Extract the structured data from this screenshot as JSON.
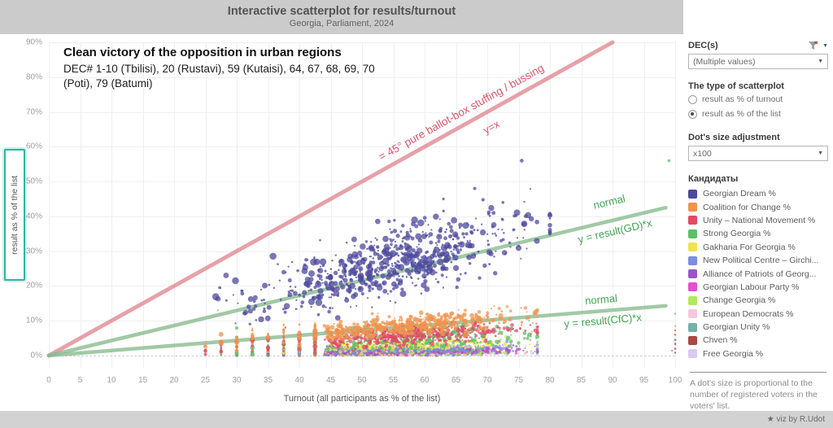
{
  "header": {
    "title": "Interactive scatterplot for results/turnout",
    "subtitle": "Georgia, Parliament, 2024"
  },
  "footer": {
    "credit": "★ viz by R.Udot"
  },
  "panel": {
    "dec_filter": {
      "label": "DEC(s)",
      "value": "(Multiple values)"
    },
    "scatterplot_type": {
      "label": "The type of scatterplot",
      "options": [
        {
          "label": "result as % of turnout",
          "selected": false
        },
        {
          "label": "result as % of the list",
          "selected": true
        }
      ]
    },
    "dot_size": {
      "label": "Dot's size adjustment",
      "value": "x100"
    },
    "legend_title": "Кандидаты",
    "note": "A dot's size is proportional to the number of registered voters in the voters' list."
  },
  "chart_data": {
    "type": "scatter",
    "title": "Interactive scatterplot for results/turnout",
    "xlabel": "Turnout (all participants as % of the list)",
    "ylabel": "result as % of the list",
    "xlim": [
      0,
      100
    ],
    "xtick_step": 5,
    "ylim": [
      0,
      90
    ],
    "ytick_step": 10,
    "ytick_suffix": "%",
    "grid": true,
    "legend_position": "right",
    "point_seed": 11,
    "annotation": {
      "title": "Clean victory of the opposition in urban regions",
      "body": "DEC# 1-10 (Tbilisi), 20 (Rustavi), 59 (Kutaisi), 64, 67, 68, 69, 70 (Poti), 79 (Batumi)"
    },
    "reference_lines": [
      {
        "name": "diagonal-45",
        "from": [
          0,
          0
        ],
        "to": [
          90,
          90
        ],
        "color": "#e08a92",
        "width": 5,
        "label_top": "= 45° pure ballot-box stuffing / bussing",
        "label_bottom": "y=x",
        "label_color": "#d5576b"
      },
      {
        "name": "gd-normal",
        "from": [
          0,
          0
        ],
        "to": [
          98.5,
          42.5
        ],
        "color": "#8abc90",
        "width": 4.5,
        "label_top": "normal",
        "label_bottom": "y = result(GD)*x",
        "label_color": "#41a352"
      },
      {
        "name": "cfc-normal",
        "from": [
          0,
          0
        ],
        "to": [
          98.5,
          14.3
        ],
        "color": "#8abc90",
        "width": 4.5,
        "label_top": "normal",
        "label_bottom": "y = result(CfC)*x",
        "label_color": "#41a352"
      }
    ],
    "series": [
      {
        "name": "Georgian Dream %",
        "color": "#4e4a9c",
        "cluster": {
          "n": 720,
          "x_mean": 56,
          "x_sd": 9.5,
          "x_clip": [
            26,
            80
          ],
          "slope": 0.48,
          "y_noise": 4.8,
          "y_clip": [
            5,
            52
          ],
          "r": [
            1.1,
            4.3
          ],
          "snap": false,
          "left_frac": 0.05
        },
        "outliers": [
          [
            75.5,
            56,
            2.3
          ],
          [
            68,
            48,
            2
          ],
          [
            72.5,
            44,
            1.8
          ],
          [
            63,
            45,
            1.6
          ]
        ]
      },
      {
        "name": "Coalition for Change %",
        "color": "#f0944d",
        "cluster": {
          "n": 640,
          "x_mean": 57,
          "x_sd": 9,
          "x_clip": [
            26,
            78
          ],
          "slope": 0.15,
          "y_noise": 1.4,
          "y_clip": [
            0.8,
            16
          ],
          "r": [
            1,
            3.3
          ],
          "snap": true,
          "left_frac": 0.08
        },
        "outliers": [
          [
            100,
            6,
            1.4
          ],
          [
            100,
            8.5,
            1.2
          ],
          [
            27,
            13,
            1.2
          ]
        ]
      },
      {
        "name": "Unity – National Movement %",
        "color": "#e04a66",
        "cluster": {
          "n": 600,
          "x_mean": 56,
          "x_sd": 9,
          "x_clip": [
            26,
            78
          ],
          "slope": 0.1,
          "y_noise": 1.4,
          "y_clip": [
            0.4,
            14
          ],
          "r": [
            1,
            3
          ],
          "snap": true,
          "left_frac": 0.08
        },
        "outliers": [
          [
            100,
            3.5,
            1.2
          ]
        ]
      },
      {
        "name": "Strong Georgia %",
        "color": "#5fbe68",
        "cluster": {
          "n": 440,
          "x_mean": 60,
          "x_sd": 9,
          "x_clip": [
            26,
            78
          ],
          "slope": 0.08,
          "y_noise": 2.0,
          "y_clip": [
            0.3,
            16
          ],
          "r": [
            1,
            3
          ],
          "snap": true,
          "left_frac": 0.07
        },
        "outliers": [
          [
            99,
            56,
            1.8
          ],
          [
            100,
            12,
            1.2
          ]
        ]
      },
      {
        "name": "Gakharia For Georgia %",
        "color": "#efe354",
        "cluster": {
          "n": 480,
          "x_mean": 56,
          "x_sd": 9,
          "x_clip": [
            26,
            78
          ],
          "slope": 0.05,
          "y_noise": 0.9,
          "y_clip": [
            0.2,
            8
          ],
          "r": [
            0.9,
            2.6
          ],
          "snap": true,
          "left_frac": 0.08
        },
        "outliers": []
      },
      {
        "name": "New Political Centre – Girchi...",
        "color": "#7a8de0",
        "cluster": {
          "n": 450,
          "x_mean": 56,
          "x_sd": 9,
          "x_clip": [
            26,
            78
          ],
          "slope": 0.032,
          "y_noise": 0.6,
          "y_clip": [
            0.15,
            5
          ],
          "r": [
            0.9,
            2.4
          ],
          "snap": true,
          "left_frac": 0.08
        },
        "outliers": []
      },
      {
        "name": "Alliance of Patriots of Georg...",
        "color": "#9c55c8",
        "cluster": {
          "n": 420,
          "x_mean": 56,
          "x_sd": 9,
          "x_clip": [
            26,
            78
          ],
          "slope": 0.024,
          "y_noise": 0.5,
          "y_clip": [
            0.1,
            4
          ],
          "r": [
            0.9,
            2.4
          ],
          "snap": true,
          "left_frac": 0.08
        },
        "outliers": []
      },
      {
        "name": "Georgian Labour Party %",
        "color": "#e44ed2",
        "cluster": {
          "n": 420,
          "x_mean": 56,
          "x_sd": 9,
          "x_clip": [
            26,
            78
          ],
          "slope": 0.02,
          "y_noise": 0.45,
          "y_clip": [
            0.1,
            3.5
          ],
          "r": [
            0.9,
            2.4
          ],
          "snap": true,
          "left_frac": 0.08
        },
        "outliers": []
      },
      {
        "name": "Change Georgia %",
        "color": "#b2e85e",
        "cluster": {
          "n": 260,
          "x_mean": 56,
          "x_sd": 9,
          "x_clip": [
            26,
            78
          ],
          "slope": 0.012,
          "y_noise": 0.35,
          "y_clip": [
            0.08,
            2.5
          ],
          "r": [
            0.9,
            2.2
          ],
          "snap": true,
          "left_frac": 0.07
        },
        "outliers": []
      },
      {
        "name": "European Democrats %",
        "color": "#f6c7db",
        "cluster": {
          "n": 220,
          "x_mean": 56,
          "x_sd": 9,
          "x_clip": [
            26,
            78
          ],
          "slope": 0.009,
          "y_noise": 0.3,
          "y_clip": [
            0.05,
            2
          ],
          "r": [
            0.9,
            2.2
          ],
          "snap": true,
          "left_frac": 0.06
        },
        "outliers": []
      },
      {
        "name": "Georgian Unity %",
        "color": "#72b2aa",
        "cluster": {
          "n": 220,
          "x_mean": 56,
          "x_sd": 9,
          "x_clip": [
            26,
            78
          ],
          "slope": 0.009,
          "y_noise": 0.3,
          "y_clip": [
            0.05,
            2
          ],
          "r": [
            0.9,
            2.2
          ],
          "snap": true,
          "left_frac": 0.06
        },
        "outliers": []
      },
      {
        "name": "Chven %",
        "color": "#a84a45",
        "cluster": {
          "n": 180,
          "x_mean": 56,
          "x_sd": 9,
          "x_clip": [
            26,
            78
          ],
          "slope": 0.014,
          "y_noise": 0.5,
          "y_clip": [
            0.05,
            3
          ],
          "r": [
            0.9,
            2.3
          ],
          "snap": true,
          "left_frac": 0.07
        },
        "outliers": [
          [
            100,
            0.8,
            1.2
          ],
          [
            100,
            2,
            1.3
          ],
          [
            100,
            3.2,
            1.2
          ],
          [
            100,
            4.5,
            1.4
          ],
          [
            100,
            6,
            1.2
          ],
          [
            100,
            7.2,
            1.1
          ],
          [
            99.5,
            1.4,
            1
          ]
        ]
      },
      {
        "name": "Free Georgia %",
        "color": "#ddc8f4",
        "cluster": {
          "n": 180,
          "x_mean": 56,
          "x_sd": 9,
          "x_clip": [
            26,
            78
          ],
          "slope": 0.007,
          "y_noise": 0.25,
          "y_clip": [
            0.05,
            1.5
          ],
          "r": [
            0.9,
            2.2
          ],
          "snap": true,
          "left_frac": 0.06
        },
        "outliers": []
      }
    ]
  }
}
